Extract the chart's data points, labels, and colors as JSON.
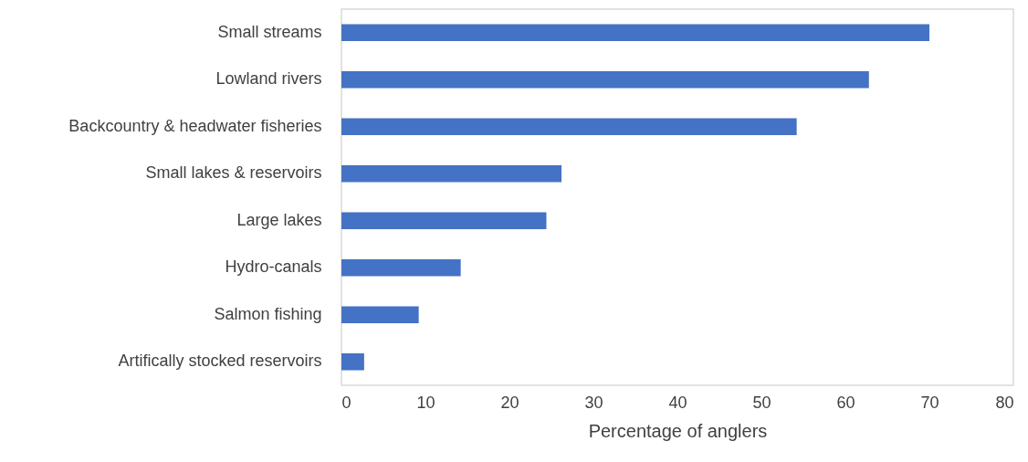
{
  "chart_data": {
    "type": "bar",
    "orientation": "horizontal",
    "xlabel": "Percentage of anglers",
    "categories": [
      "Small streams",
      "Lowland rivers",
      "Backcountry & headwater fisheries",
      "Small lakes & reservoirs",
      "Large lakes",
      "Hydro-canals",
      "Salmon fishing",
      "Artifically stocked reservoirs"
    ],
    "values": [
      70,
      62.8,
      54.2,
      26.2,
      24.4,
      14.2,
      9.2,
      2.7
    ],
    "color": "#4472c4",
    "xlim": [
      0,
      80
    ],
    "xticks": [
      0,
      10,
      20,
      30,
      40,
      50,
      60,
      70,
      80
    ],
    "grid": false
  }
}
